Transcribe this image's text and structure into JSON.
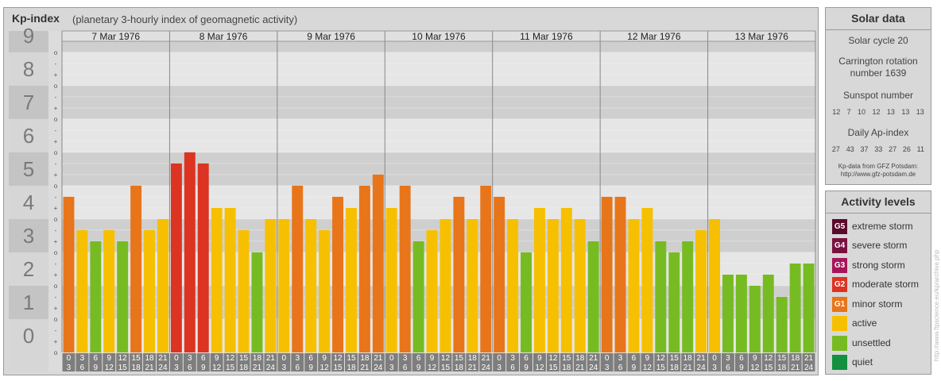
{
  "header": {
    "title": "Kp-index",
    "subtitle": "(planetary 3-hourly index of geomagnetic activity)"
  },
  "solar": {
    "title": "Solar data",
    "cycle": "Solar cycle 20",
    "carrington_line1": "Carrington rotation",
    "carrington_line2": "number 1639",
    "sunspot_label": "Sunspot number",
    "sunspot_numbers": [
      "12",
      "7",
      "10",
      "12",
      "13",
      "13",
      "13"
    ],
    "ap_label": "Daily Ap-index",
    "ap_numbers": [
      "27",
      "43",
      "37",
      "33",
      "27",
      "26",
      "11"
    ],
    "source_line1": "Kp-data from GFZ Potsdam:",
    "source_line2": "http://www.gfz-potsdam.de"
  },
  "activity": {
    "title": "Activity levels",
    "levels": [
      {
        "code": "G5",
        "label": "extreme storm",
        "color": "#5a0a2a"
      },
      {
        "code": "G4",
        "label": "severe storm",
        "color": "#7a1040"
      },
      {
        "code": "G3",
        "label": "strong storm",
        "color": "#a8145a"
      },
      {
        "code": "G2",
        "label": "moderate storm",
        "color": "#dd3322"
      },
      {
        "code": "G1",
        "label": "minor storm",
        "color": "#e8751a"
      },
      {
        "code": "",
        "label": "active",
        "color": "#f6c000"
      },
      {
        "code": "",
        "label": "unsettled",
        "color": "#77bb22"
      },
      {
        "code": "",
        "label": "quiet",
        "color": "#139040"
      }
    ]
  },
  "watermark": "http://www.ftpscience.eu/kp/archive.php",
  "chart_data": {
    "type": "bar",
    "title": "Kp-index",
    "y_ticks": [
      "0",
      "1",
      "2",
      "3",
      "4",
      "5",
      "6",
      "7",
      "8",
      "9"
    ],
    "subticks": [
      "o",
      "+",
      "-"
    ],
    "ylim": [
      0,
      9.33
    ],
    "days": [
      "7 Mar 1976",
      "8 Mar 1976",
      "9 Mar 1976",
      "10 Mar 1976",
      "11 Mar 1976",
      "12 Mar 1976",
      "13 Mar 1976"
    ],
    "hour_labels": [
      [
        "0",
        "3"
      ],
      [
        "3",
        "6"
      ],
      [
        "6",
        "9"
      ],
      [
        "9",
        "12"
      ],
      [
        "12",
        "15"
      ],
      [
        "15",
        "18"
      ],
      [
        "18",
        "21"
      ],
      [
        "21",
        "24"
      ]
    ],
    "values": [
      [
        4.667,
        3.667,
        3.333,
        3.667,
        3.333,
        5.0,
        3.667,
        4.0
      ],
      [
        5.667,
        6.0,
        5.667,
        4.333,
        4.333,
        3.667,
        3.0,
        4.0
      ],
      [
        4.0,
        5.0,
        4.0,
        3.667,
        4.667,
        4.333,
        5.0,
        5.333
      ],
      [
        4.333,
        5.0,
        3.333,
        3.667,
        4.0,
        4.667,
        4.0,
        5.0
      ],
      [
        4.667,
        4.0,
        3.0,
        4.333,
        4.0,
        4.333,
        4.0,
        3.333
      ],
      [
        4.667,
        4.667,
        4.0,
        4.333,
        3.333,
        3.0,
        3.333,
        3.667
      ],
      [
        4.0,
        2.333,
        2.333,
        2.0,
        2.333,
        1.667,
        2.667,
        2.667
      ]
    ],
    "colors": {
      "quiet": "#139040",
      "unsettled": "#77bb22",
      "active": "#f6c000",
      "minor_storm": "#e8751a",
      "moderate_storm": "#dd3322",
      "strong_storm": "#a8145a",
      "severe_storm": "#7a1040",
      "extreme_storm": "#5a0a2a"
    }
  }
}
